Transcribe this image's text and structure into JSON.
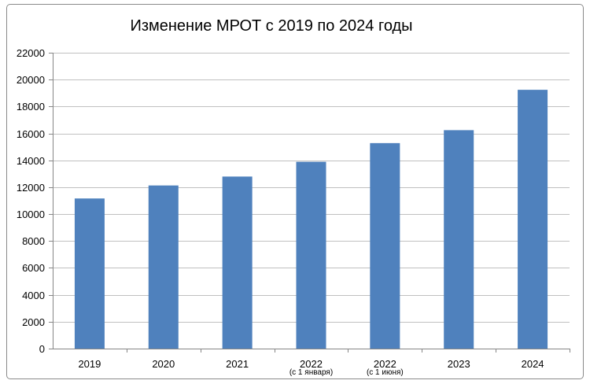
{
  "chart_data": {
    "type": "bar",
    "title": "Изменение МРОТ с 2019 по 2024 годы",
    "categories": [
      {
        "label": "2019",
        "sub": ""
      },
      {
        "label": "2020",
        "sub": ""
      },
      {
        "label": "2021",
        "sub": ""
      },
      {
        "label": "2022",
        "sub": "(с 1 января)"
      },
      {
        "label": "2022",
        "sub": "(с 1 июня)"
      },
      {
        "label": "2023",
        "sub": ""
      },
      {
        "label": "2024",
        "sub": ""
      }
    ],
    "values": [
      11163,
      12130,
      12792,
      13890,
      15279,
      16242,
      19242
    ],
    "ylim": [
      0,
      22000
    ],
    "yticks": [
      0,
      2000,
      4000,
      6000,
      8000,
      10000,
      12000,
      14000,
      16000,
      18000,
      20000,
      22000
    ],
    "grid": true,
    "bar_color": "#4f81bd",
    "grid_color": "#c0c0c0",
    "axis_color": "#868686"
  }
}
